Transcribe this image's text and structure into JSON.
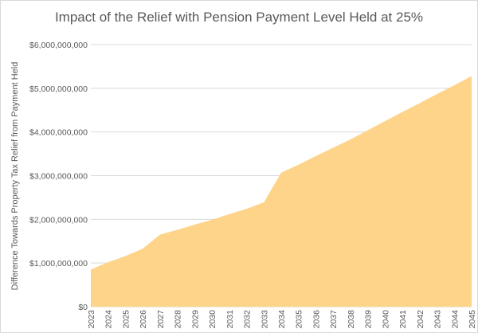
{
  "chart_data": {
    "type": "area",
    "title": "Impact of the Relief with Pension Payment Level Held at 25%",
    "xlabel": "",
    "ylabel": "Difference Towards Property Tax Relief from Payment Held",
    "ylim": [
      0,
      6000000000
    ],
    "y_ticks": [
      0,
      1000000000,
      2000000000,
      3000000000,
      4000000000,
      5000000000,
      6000000000
    ],
    "y_tick_labels": [
      "$0",
      "$1,000,000,000",
      "$2,000,000,000",
      "$3,000,000,000",
      "$4,000,000,000",
      "$5,000,000,000",
      "$6,000,000,000"
    ],
    "grid": true,
    "legend": "none",
    "color": "#FDD48A",
    "categories": [
      "2023",
      "2024",
      "2025",
      "2026",
      "2027",
      "2028",
      "2029",
      "2030",
      "2031",
      "2032",
      "2033",
      "2034",
      "2035",
      "2036",
      "2037",
      "2038",
      "2039",
      "2040",
      "2041",
      "2042",
      "2043",
      "2044",
      "2045"
    ],
    "values": [
      850000000,
      1020000000,
      1160000000,
      1330000000,
      1650000000,
      1760000000,
      1880000000,
      1990000000,
      2120000000,
      2240000000,
      2390000000,
      3070000000,
      3250000000,
      3450000000,
      3640000000,
      3830000000,
      4040000000,
      4250000000,
      4460000000,
      4660000000,
      4870000000,
      5070000000,
      5280000000
    ]
  }
}
